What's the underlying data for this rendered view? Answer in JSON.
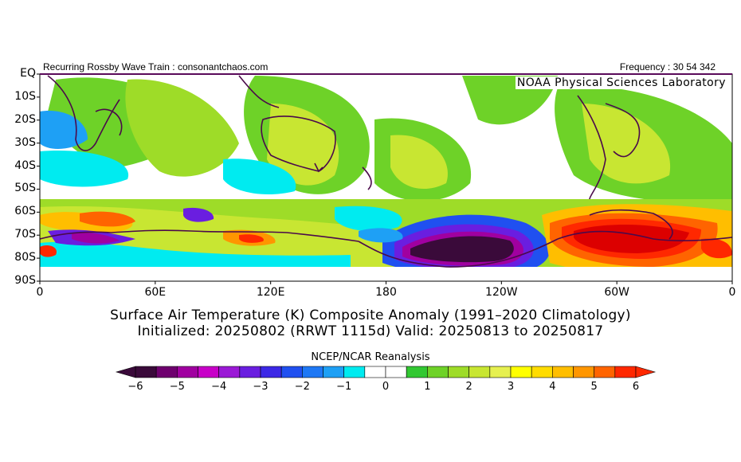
{
  "header": {
    "left_text": "Recurring Rossby Wave Train : consonantchaos.com",
    "right_text": "Frequency : 30 54 342",
    "lab_name": "NOAA Physical Sciences Laboratory"
  },
  "title": {
    "line1": "Surface Air Temperature (K) Composite Anomaly (1991–2020 Climatology)",
    "line2": "Initialized: 20250802 (RRWT 1115d) Valid: 20250813 to 20250817"
  },
  "legend": {
    "source": "NCEP/NCAR Reanalysis",
    "ticks": [
      "-6",
      "-5",
      "-4",
      "-3",
      "-2",
      "-1",
      "0",
      "1",
      "2",
      "3",
      "4",
      "5",
      "6"
    ],
    "colors": [
      "#3a0a3a",
      "#6e006e",
      "#a000a0",
      "#c800c8",
      "#9b19d6",
      "#6a1ee0",
      "#3c28e6",
      "#2050f0",
      "#1e78f5",
      "#1ea0f5",
      "#00ebf0",
      "#ffffff",
      "#ffffff",
      "#32c832",
      "#6ed228",
      "#9edc28",
      "#c8e632",
      "#e6f050",
      "#ffff00",
      "#ffdc00",
      "#ffbe00",
      "#ff9600",
      "#ff6400",
      "#ff2800"
    ],
    "min_color": "#3a0a3a",
    "max_color": "#ff2800"
  },
  "map": {
    "y_labels": [
      "EQ",
      "10S",
      "20S",
      "30S",
      "40S",
      "50S",
      "60S",
      "70S",
      "80S",
      "90S"
    ],
    "x_labels": [
      "0",
      "60E",
      "120E",
      "180",
      "120W",
      "60W",
      "0"
    ]
  }
}
